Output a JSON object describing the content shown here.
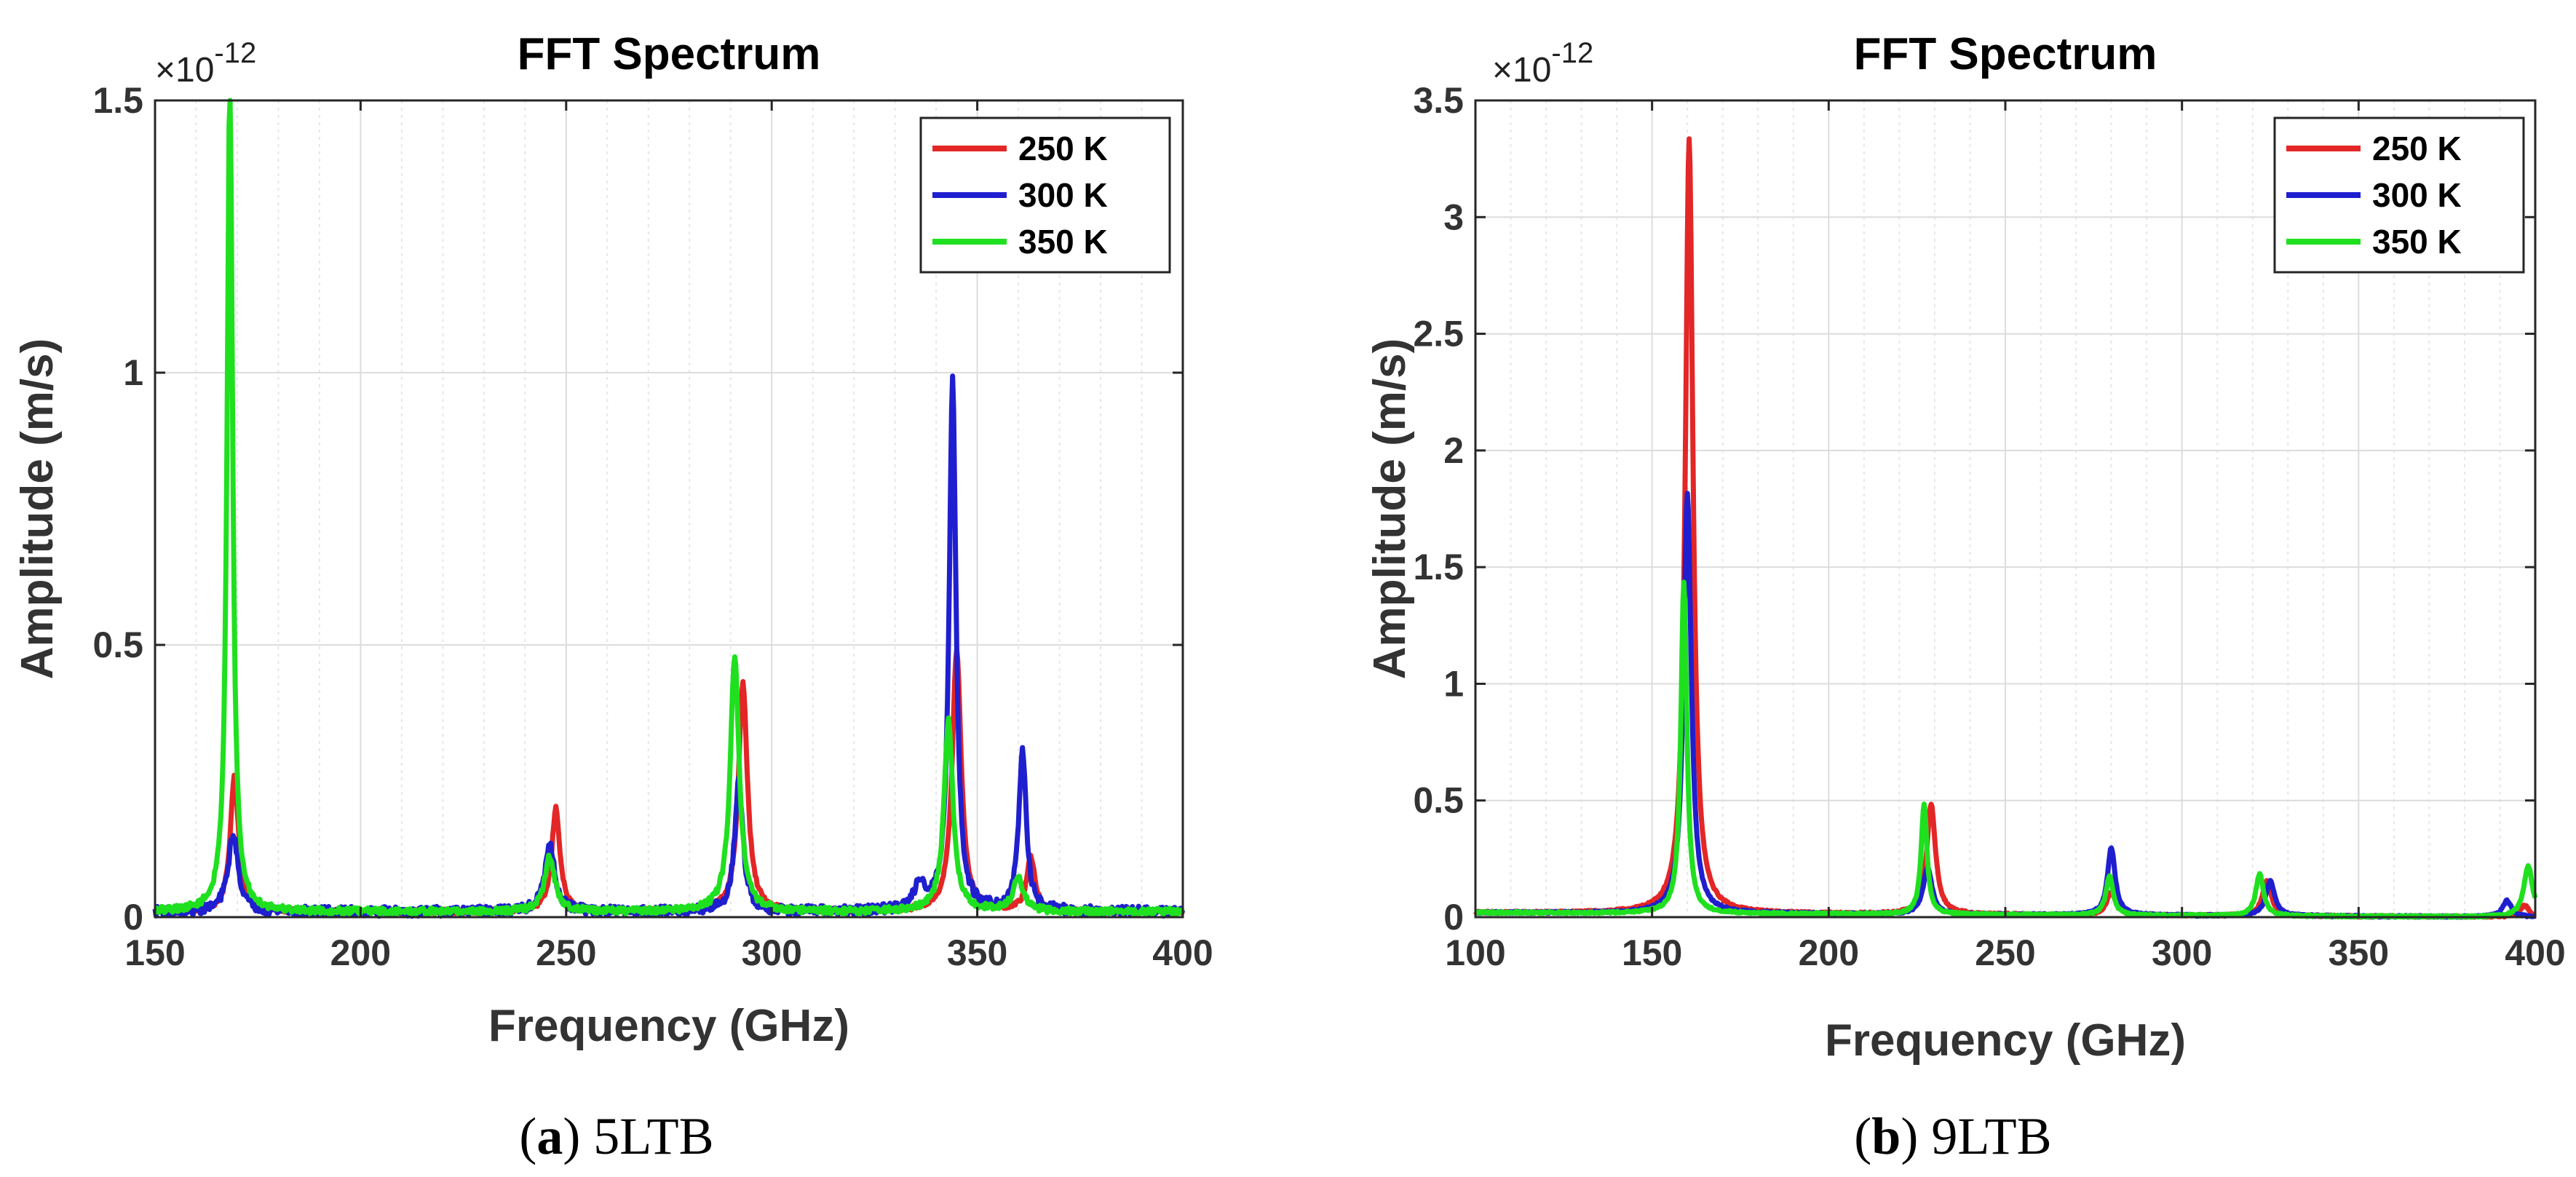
{
  "chart_data": [
    {
      "type": "line",
      "panel": "a",
      "title": "FFT Spectrum",
      "xlabel": "Frequency (GHz)",
      "ylabel": "Amplitude (m/s)",
      "exponent_label": "×10",
      "exponent_power": "-12",
      "xlim": [
        150,
        400
      ],
      "ylim": [
        0,
        1.5
      ],
      "xticks": [
        150,
        200,
        250,
        300,
        350,
        400
      ],
      "xtick_labels": [
        "150",
        "200",
        "250",
        "300",
        "350",
        "400"
      ],
      "yticks": [
        0,
        0.5,
        1,
        1.5
      ],
      "ytick_labels": [
        "0",
        "0.5",
        "1",
        "1.5"
      ],
      "legend_position": "top-right",
      "caption_label": "a",
      "caption_text": " 5LTB",
      "baseline": 0.01,
      "series": [
        {
          "name": "250 K",
          "color": "#e32626",
          "peaks": [
            [
              169.3,
              0.25,
              1.2
            ],
            [
              247.5,
              0.19,
              1.2
            ],
            [
              293,
              0.42,
              1.3
            ],
            [
              345,
              0.48,
              1.3
            ],
            [
              363,
              0.1,
              1.2
            ]
          ],
          "noise": 0.004
        },
        {
          "name": "300 K",
          "color": "#1f1fcf",
          "peaks": [
            [
              169,
              0.14,
              1.5
            ],
            [
              246,
              0.12,
              1.5
            ],
            [
              292,
              0.24,
              1.2
            ],
            [
              344,
              0.98,
              1.0
            ],
            [
              361,
              0.29,
              1.1
            ],
            [
              336,
              0.05,
              1.5
            ]
          ],
          "noise": 0.009
        },
        {
          "name": "350 K",
          "color": "#1fe01f",
          "peaks": [
            [
              168.2,
              1.53,
              0.8
            ],
            [
              246,
              0.1,
              1.5
            ],
            [
              291,
              0.47,
              1.3
            ],
            [
              343,
              0.35,
              1.3
            ],
            [
              360,
              0.06,
              1.5
            ]
          ],
          "noise": 0.006
        }
      ]
    },
    {
      "type": "line",
      "panel": "b",
      "title": "FFT Spectrum",
      "xlabel": "Frequency (GHz)",
      "ylabel": "Amplitude (m/s)",
      "exponent_label": "×10",
      "exponent_power": "-12",
      "xlim": [
        100,
        400
      ],
      "ylim": [
        0,
        3.5
      ],
      "xticks": [
        100,
        150,
        200,
        250,
        300,
        350,
        400
      ],
      "xtick_labels": [
        "100",
        "150",
        "200",
        "250",
        "300",
        "350",
        "400"
      ],
      "yticks": [
        0,
        0.5,
        1,
        1.5,
        2,
        2.5,
        3,
        3.5
      ],
      "ytick_labels": [
        "0",
        "0.5",
        "1",
        "1.5",
        "2",
        "2.5",
        "3",
        "3.5"
      ],
      "legend_position": "top-right",
      "caption_label": "b",
      "caption_text": " 9LTB",
      "baseline": 0.0,
      "series": [
        {
          "name": "250 K",
          "color": "#e32626",
          "peaks": [
            [
              160.5,
              3.32,
              1.3
            ],
            [
              229,
              0.47,
              1.5
            ],
            [
              280,
              0.1,
              1.5
            ],
            [
              324,
              0.15,
              1.5
            ],
            [
              397,
              0.05,
              1.5
            ]
          ],
          "noise": 0.004
        },
        {
          "name": "300 K",
          "color": "#1f1fcf",
          "peaks": [
            [
              160,
              1.8,
              1.3
            ],
            [
              228,
              0.2,
              1.5
            ],
            [
              280,
              0.29,
              1.3
            ],
            [
              325,
              0.15,
              1.5
            ],
            [
              392,
              0.07,
              1.5
            ]
          ],
          "noise": 0.004
        },
        {
          "name": "350 K",
          "color": "#1fe01f",
          "peaks": [
            [
              159,
              1.42,
              1.0
            ],
            [
              227,
              0.47,
              1.0
            ],
            [
              279.5,
              0.17,
              1.2
            ],
            [
              322,
              0.18,
              1.3
            ],
            [
              398,
              0.22,
              1.5
            ]
          ],
          "noise": 0.004
        }
      ]
    }
  ]
}
